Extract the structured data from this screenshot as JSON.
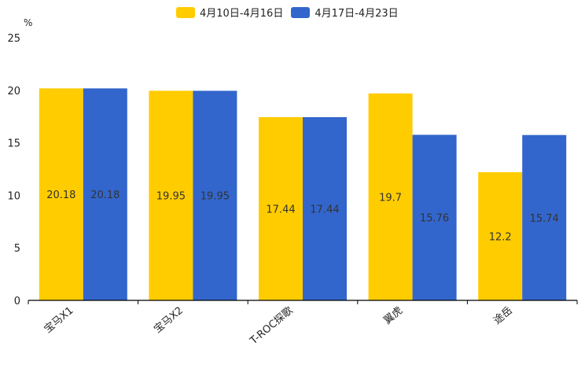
{
  "chart_data": {
    "type": "bar",
    "unit": "%",
    "categories": [
      "宝马X1",
      "宝马X2",
      "T-ROC探歌",
      "翼虎",
      "途岳"
    ],
    "series": [
      {
        "name": "4月10日-4月16日",
        "color": "#ffcc00",
        "values": [
          20.18,
          19.95,
          17.44,
          19.7,
          12.2
        ],
        "labels": [
          "20.18",
          "19.95",
          "17.44",
          "19.7",
          "12.2"
        ]
      },
      {
        "name": "4月17日-4月23日",
        "color": "#3366cc",
        "values": [
          20.18,
          19.95,
          17.44,
          15.76,
          15.74
        ],
        "labels": [
          "20.18",
          "19.95",
          "17.44",
          "15.76",
          "15.74"
        ]
      }
    ],
    "ylim": [
      0,
      25
    ],
    "yticks": [
      "0",
      "5",
      "10",
      "15",
      "20",
      "25"
    ],
    "legend_position": "top-center"
  }
}
